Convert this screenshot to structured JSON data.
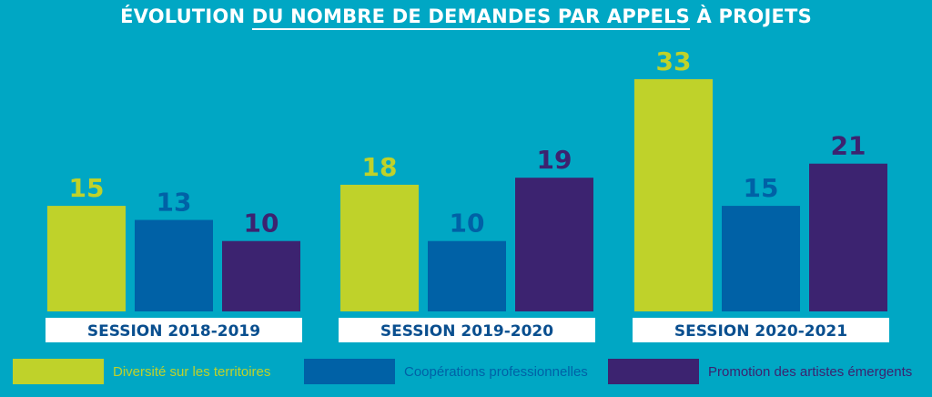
{
  "title": {
    "part1": "ÉVOLUTION ",
    "underlined": "DU NOMBRE DE DEMANDES PAR APPELS",
    "part2": " À PROJETS"
  },
  "colors": {
    "background": "#00a7c4",
    "diversite": "#bfd22a",
    "cooperations": "#0061a6",
    "promotion": "#3c2370",
    "session_box": "#ffffff",
    "session_text": "#0a4f8f"
  },
  "chart_data": {
    "type": "bar",
    "title": "ÉVOLUTION DU NOMBRE DE DEMANDES PAR APPELS À PROJETS",
    "categories": [
      "SESSION 2018-2019",
      "SESSION 2019-2020",
      "SESSION 2020-2021"
    ],
    "series": [
      {
        "name": "Diversité sur les territoires",
        "values": [
          15,
          18,
          33
        ],
        "color": "#bfd22a"
      },
      {
        "name": "Coopérations professionnelles",
        "values": [
          13,
          10,
          15
        ],
        "color": "#0061a6"
      },
      {
        "name": "Promotion des artistes émergents",
        "values": [
          10,
          19,
          21
        ],
        "color": "#3c2370"
      }
    ],
    "legend_position": "bottom",
    "grid": false,
    "ylim": [
      0,
      33
    ]
  }
}
